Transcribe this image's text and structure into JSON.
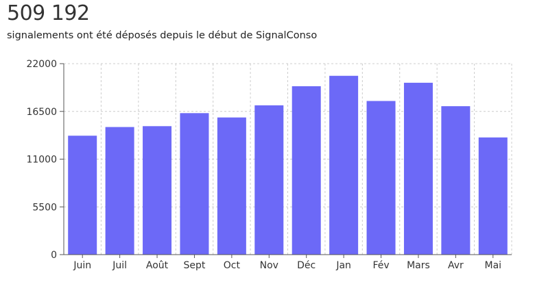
{
  "header": {
    "total_count": "509 192",
    "caption": "signalements ont été déposés depuis le début de SignalConso"
  },
  "colors": {
    "bar": "#6c69f7",
    "axis": "#555555",
    "grid": "#cccccc"
  },
  "chart_data": {
    "type": "bar",
    "categories": [
      "Juin",
      "Juil",
      "Août",
      "Sept",
      "Oct",
      "Nov",
      "Déc",
      "Jan",
      "Fév",
      "Mars",
      "Avr",
      "Mai"
    ],
    "values": [
      13700,
      14700,
      14800,
      16300,
      15800,
      17200,
      19400,
      20600,
      17700,
      19800,
      17100,
      13500
    ],
    "yticks": [
      0,
      5500,
      11000,
      16500,
      22000
    ],
    "ylim": [
      0,
      22000
    ],
    "title": "",
    "xlabel": "",
    "ylabel": "",
    "grid": true,
    "legend": "none"
  }
}
